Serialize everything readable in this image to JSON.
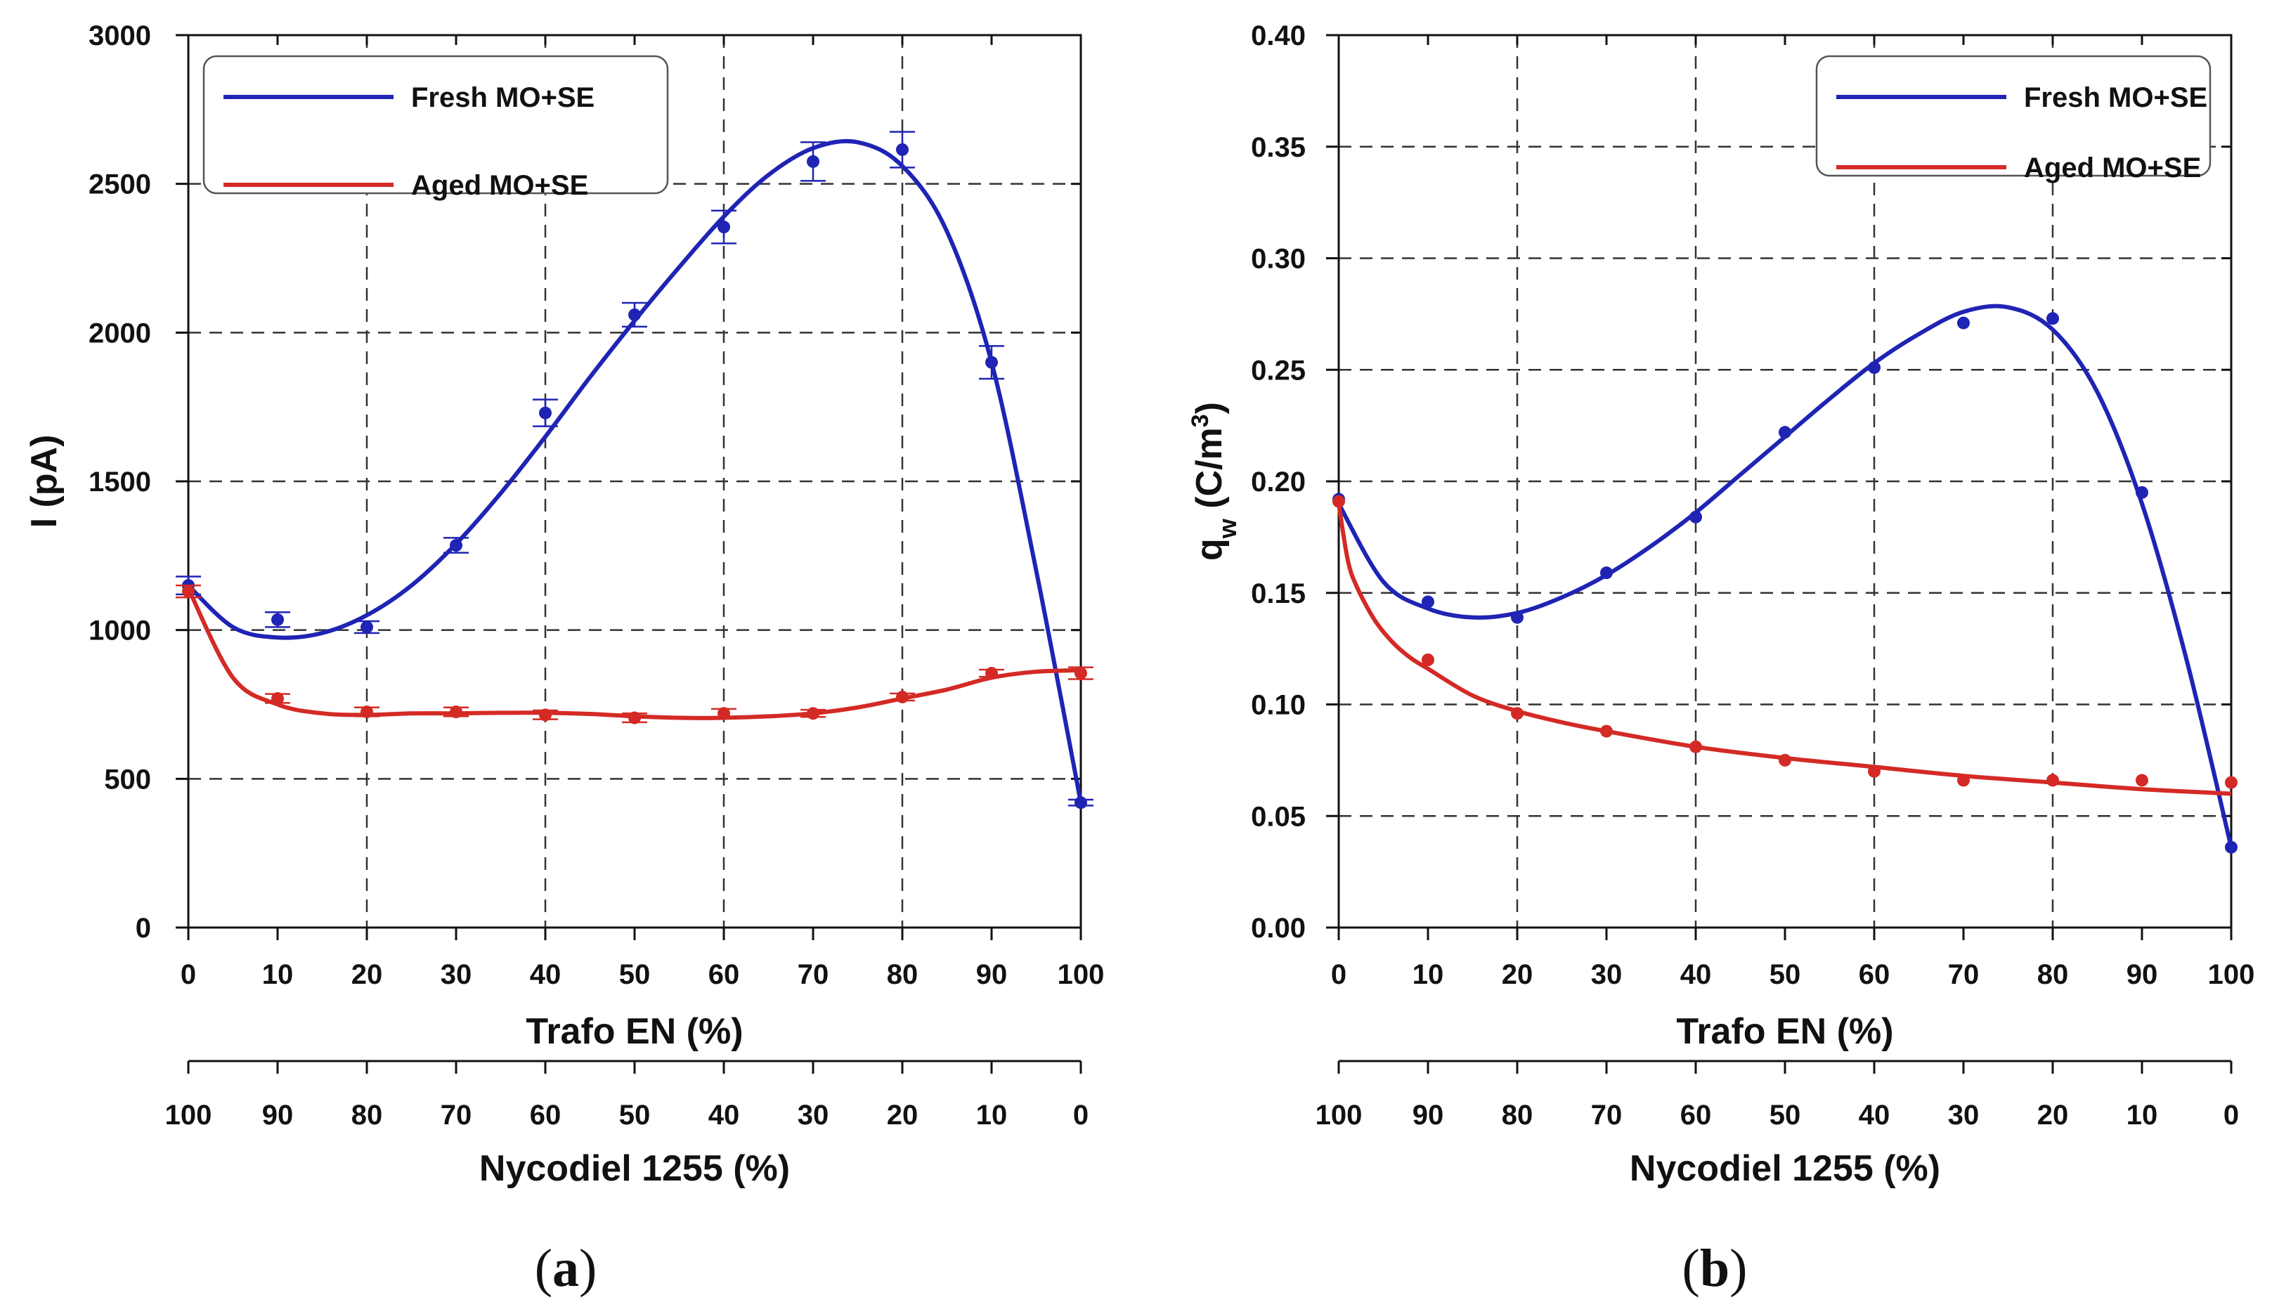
{
  "colors": {
    "fresh": "#1f24b4",
    "aged": "#d42a25",
    "axis": "#111111",
    "grid": "#333333"
  },
  "chart_data": [
    {
      "panel": "a",
      "type": "scatter",
      "panel_label": "a",
      "ylabel": "I (pA)",
      "xlabel": "Trafo EN (%)",
      "x2label": "Nycodiel 1255 (%)",
      "xlim": [
        0,
        100
      ],
      "ylim": [
        0,
        3000
      ],
      "yticks": [
        "0",
        "500",
        "1000",
        "1500",
        "2000",
        "2500",
        "3000"
      ],
      "xticks": [
        "0",
        "10",
        "20",
        "30",
        "40",
        "50",
        "60",
        "70",
        "80",
        "90",
        "100"
      ],
      "x2ticks": [
        "100",
        "90",
        "80",
        "70",
        "60",
        "50",
        "40",
        "30",
        "20",
        "10",
        "0"
      ],
      "grid": true,
      "legend_position": "top-left",
      "series": [
        {
          "name": "Fresh MO+SE",
          "key": "fresh",
          "x": [
            0,
            10,
            20,
            30,
            40,
            50,
            60,
            70,
            80,
            90,
            100
          ],
          "y": [
            1150,
            1035,
            1010,
            1285,
            1730,
            2060,
            2355,
            2575,
            2615,
            1900,
            420
          ],
          "err": [
            30,
            25,
            20,
            25,
            45,
            40,
            55,
            65,
            60,
            55,
            10
          ],
          "fit_x": [
            0,
            5,
            10,
            15,
            20,
            25,
            30,
            35,
            40,
            45,
            50,
            55,
            60,
            65,
            70,
            75,
            80,
            85,
            90,
            95,
            100
          ],
          "fit_y": [
            1150,
            1010,
            975,
            990,
            1050,
            1150,
            1290,
            1460,
            1650,
            1850,
            2040,
            2220,
            2390,
            2530,
            2620,
            2640,
            2560,
            2340,
            1900,
            1200,
            420
          ]
        },
        {
          "name": "Aged  MO+SE",
          "key": "aged",
          "x": [
            0,
            10,
            20,
            30,
            40,
            50,
            60,
            70,
            80,
            90,
            100
          ],
          "y": [
            1130,
            770,
            725,
            725,
            715,
            705,
            720,
            720,
            775,
            855,
            855
          ],
          "err": [
            20,
            15,
            15,
            15,
            15,
            15,
            15,
            12,
            12,
            12,
            20
          ],
          "fit_x": [
            0,
            5,
            10,
            15,
            20,
            25,
            30,
            35,
            40,
            45,
            50,
            55,
            60,
            65,
            70,
            75,
            80,
            85,
            90,
            95,
            100
          ],
          "fit_y": [
            1140,
            840,
            750,
            720,
            715,
            720,
            720,
            722,
            722,
            718,
            710,
            705,
            705,
            710,
            720,
            740,
            770,
            800,
            840,
            860,
            865
          ]
        }
      ]
    },
    {
      "panel": "b",
      "type": "scatter",
      "panel_label": "b",
      "ylabel": "q",
      "ylabel_sub": "w",
      "ylabel_unit": " (C/m",
      "ylabel_sup": "3",
      "ylabel_close": ")",
      "xlabel": "Trafo EN (%)",
      "x2label": "Nycodiel 1255 (%)",
      "xlim": [
        0,
        100
      ],
      "ylim": [
        0,
        0.4
      ],
      "yticks": [
        "0.00",
        "0.05",
        "0.10",
        "0.15",
        "0.20",
        "0.25",
        "0.30",
        "0.35",
        "0.40"
      ],
      "xticks": [
        "0",
        "10",
        "20",
        "30",
        "40",
        "50",
        "60",
        "70",
        "80",
        "90",
        "100"
      ],
      "x2ticks": [
        "100",
        "90",
        "80",
        "70",
        "60",
        "50",
        "40",
        "30",
        "20",
        "10",
        "0"
      ],
      "grid": true,
      "legend_position": "top-right",
      "series": [
        {
          "name": "Fresh MO+SE",
          "key": "fresh",
          "x": [
            0,
            10,
            20,
            30,
            40,
            50,
            60,
            70,
            80,
            90,
            100
          ],
          "y": [
            0.192,
            0.146,
            0.139,
            0.159,
            0.184,
            0.222,
            0.251,
            0.271,
            0.273,
            0.195,
            0.036
          ],
          "fit_x": [
            0,
            5,
            10,
            15,
            20,
            25,
            30,
            35,
            40,
            45,
            50,
            55,
            60,
            65,
            70,
            75,
            80,
            85,
            90,
            95,
            100
          ],
          "fit_y": [
            0.19,
            0.155,
            0.143,
            0.139,
            0.141,
            0.148,
            0.158,
            0.171,
            0.186,
            0.203,
            0.22,
            0.237,
            0.253,
            0.266,
            0.276,
            0.278,
            0.268,
            0.24,
            0.19,
            0.12,
            0.036
          ]
        },
        {
          "name": "Aged  MO+SE",
          "key": "aged",
          "x": [
            0,
            10,
            20,
            30,
            40,
            50,
            60,
            70,
            80,
            90,
            100
          ],
          "y": [
            0.191,
            0.12,
            0.096,
            0.088,
            0.081,
            0.075,
            0.07,
            0.066,
            0.066,
            0.066,
            0.065
          ],
          "fit_x": [
            0,
            1,
            2,
            4,
            6,
            8,
            10,
            15,
            20,
            25,
            30,
            40,
            50,
            60,
            70,
            80,
            90,
            100
          ],
          "fit_y": [
            0.19,
            0.165,
            0.153,
            0.138,
            0.128,
            0.121,
            0.116,
            0.104,
            0.097,
            0.092,
            0.088,
            0.081,
            0.076,
            0.072,
            0.068,
            0.065,
            0.062,
            0.06
          ]
        }
      ]
    }
  ]
}
